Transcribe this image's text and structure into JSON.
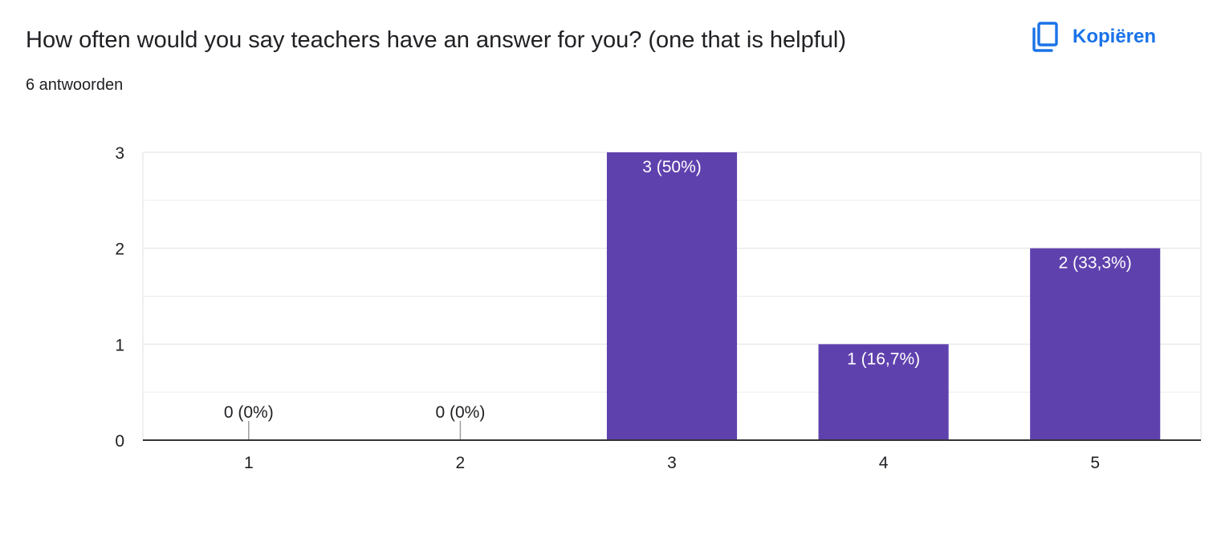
{
  "question": {
    "title": "How often would you say teachers have an answer for you? (one that is helpful)",
    "response_count": "6 antwoorden"
  },
  "copy_button": {
    "label": "Kopiëren",
    "icon": "copy-icon"
  },
  "colors": {
    "bar": "#5f41ae",
    "accent": "#1a73e8",
    "grid": "#ececec",
    "axis": "#333333",
    "text": "#202124",
    "label_inside": "#ffffff"
  },
  "chart_data": {
    "type": "bar",
    "categories": [
      "1",
      "2",
      "3",
      "4",
      "5"
    ],
    "values": [
      0,
      0,
      3,
      1,
      2
    ],
    "data_labels": [
      "0 (0%)",
      "0 (0%)",
      "3 (50%)",
      "1 (16,7%)",
      "2 (33,3%)"
    ],
    "y_ticks": [
      "0",
      "1",
      "2",
      "3"
    ],
    "ylim": [
      0,
      3
    ],
    "grid": true,
    "title": "",
    "xlabel": "",
    "ylabel": ""
  }
}
